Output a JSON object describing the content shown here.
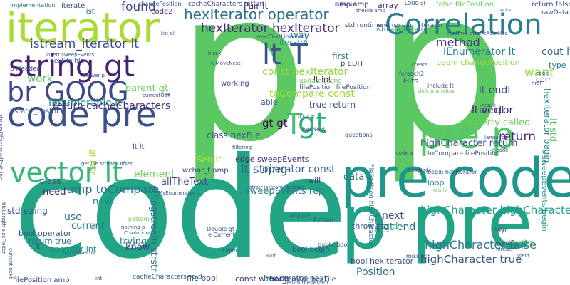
{
  "words": [
    {
      "text": "p",
      "color": "#5cc863"
    },
    {
      "text": "p",
      "color": "#5cc863"
    },
    {
      "text": "code",
      "color": "#21a585"
    },
    {
      "text": "pre code",
      "color": "#1f968b"
    },
    {
      "text": "p pre",
      "color": "#20a486"
    },
    {
      "text": "iterator",
      "color": "#a8db34"
    },
    {
      "text": "code pre",
      "color": "#3b518b"
    },
    {
      "text": "Correlation",
      "color": "#287d8e"
    },
    {
      "text": "string gt",
      "color": "#482173"
    },
    {
      "text": "br GOOG",
      "color": "#3e4a89"
    },
    {
      "text": "vector lt",
      "color": "#35b779"
    },
    {
      "text": "lt T",
      "color": "#3b528b"
    },
    {
      "text": "pre p",
      "color": "#56c667"
    },
    {
      "text": "gt",
      "color": "#2db27d"
    },
    {
      "text": "T",
      "color": "#44bf70"
    },
    {
      "text": "hexIterator operator",
      "color": "#2c728e"
    },
    {
      "text": "hexIterator hexIterator",
      "color": "#472c7a"
    },
    {
      "text": "istream_iterator lt",
      "color": "#3e4a89"
    },
    {
      "text": "highCharacter highCharacter",
      "color": "#1fa088"
    },
    {
      "text": "highCharacter false",
      "color": "#2a788e"
    },
    {
      "text": "highCharacter true",
      "color": "#3b528b"
    },
    {
      "text": "lt string",
      "color": "#31688e"
    },
    {
      "text": "IEnumerator lt",
      "color": "#25848e"
    },
    {
      "text": "lt vector",
      "color": "#481a6c"
    },
    {
      "text": "return",
      "color": "#482475"
    },
    {
      "text": "want",
      "color": "#8fd744"
    },
    {
      "text": "found",
      "color": "#3e4989"
    },
    {
      "text": "iterator",
      "color": "#20928c"
    },
    {
      "text": "method",
      "color": "#443983"
    },
    {
      "text": "const hexIterator",
      "color": "#93d741"
    },
    {
      "text": "toCompare const",
      "color": "#a0da39"
    },
    {
      "text": "amp toCompare",
      "color": "#2d708e"
    },
    {
      "text": "operator const",
      "color": "#32648e"
    },
    {
      "text": "sweepEvents rep",
      "color": "#26828e"
    },
    {
      "text": "allTheText",
      "color": "#3f4788"
    },
    {
      "text": "IEnumerable lt",
      "color": "#21918c"
    },
    {
      "text": "return cacheCharacters",
      "color": "#46337e"
    },
    {
      "text": "gt end",
      "color": "#2e6f8e"
    },
    {
      "text": "Position",
      "color": "#2c738e"
    },
    {
      "text": "cout lt",
      "color": "#355e8d"
    },
    {
      "text": "int gt",
      "color": "#3f4889"
    },
    {
      "text": "lt endl",
      "color": "#3b528b"
    },
    {
      "text": "gt gt",
      "color": "#440154"
    },
    {
      "text": "work",
      "color": "#5cc863"
    },
    {
      "text": "element",
      "color": "#6ccd5a"
    },
    {
      "text": "property called",
      "color": "#6ece58"
    },
    {
      "text": "stringstream strstr",
      "color": "#2e6e8e"
    },
    {
      "text": "hexIterator begin",
      "color": "#25838e"
    },
    {
      "text": "std string",
      "color": "#3c4f8a"
    },
    {
      "text": "bool operator",
      "color": "#39558c"
    },
    {
      "text": "Seq lt",
      "color": "#b5de2b"
    },
    {
      "text": "corr",
      "color": "#404688"
    },
    {
      "text": "lt std",
      "color": "#5ec962"
    },
    {
      "text": "need",
      "color": "#482878"
    },
    {
      "text": "use",
      "color": "#2f6c8e"
    },
    {
      "text": "current",
      "color": "#2a788e"
    },
    {
      "text": "trying",
      "color": "#26828e"
    },
    {
      "text": "know",
      "color": "#46337f"
    },
    {
      "text": "next",
      "color": "#3a548c"
    },
    {
      "text": "new",
      "color": "#25858e"
    },
    {
      "text": "class",
      "color": "#3b528b"
    },
    {
      "text": "data",
      "color": "#2a788e"
    },
    {
      "text": "loop",
      "color": "#25848e"
    },
    {
      "text": "end",
      "color": "#35b779"
    },
    {
      "text": "way",
      "color": "#277f8e"
    },
    {
      "text": "first",
      "color": "#2a788e"
    },
    {
      "text": "Hits",
      "color": "#3e4a89"
    },
    {
      "text": "able",
      "color": "#3b528b"
    },
    {
      "text": "will",
      "color": "#46337e"
    },
    {
      "text": "list",
      "color": "#2c728e"
    },
    {
      "text": "code2",
      "color": "#481f70"
    },
    {
      "text": "type",
      "color": "#2a788e"
    },
    {
      "text": "x",
      "color": "#3b528b"
    },
    {
      "text": "bool hexIterator",
      "color": "#3b528b"
    },
    {
      "text": "sweepEvents begin",
      "color": "#20938c"
    },
    {
      "text": "highCharacter return",
      "color": "#39558c"
    },
    {
      "text": "begin changePosition",
      "color": "#89d548"
    },
    {
      "text": "wchar_t amp",
      "color": "#433d84"
    },
    {
      "text": "const wchar_t",
      "color": "#472c7a"
    },
    {
      "text": "file bool",
      "color": "#3b528b"
    },
    {
      "text": "hexIterator next",
      "color": "#2a788e"
    },
    {
      "text": "hexIterator hexFile",
      "color": "#3e4a89"
    },
    {
      "text": "cacheCharacters void",
      "color": "#31688e"
    },
    {
      "text": "filePosition amp",
      "color": "#3e4a89"
    },
    {
      "text": "operator int",
      "color": "#25848e"
    },
    {
      "text": "return true",
      "color": "#2a788e"
    },
    {
      "text": "bool begin",
      "color": "#3b528b"
    },
    {
      "text": "throw std",
      "color": "#3e4a89"
    },
    {
      "text": "parent gt",
      "color": "#6ece58"
    },
    {
      "text": "class hexFile",
      "color": "#3b528b"
    },
    {
      "text": "edge sweepEvents",
      "color": "#482475"
    },
    {
      "text": "true return",
      "color": "#3b528b"
    },
    {
      "text": "lt int",
      "color": "#440154"
    },
    {
      "text": "p EDIT",
      "color": "#3e4a89"
    },
    {
      "text": "static_cast lt",
      "color": "#3b528b"
    },
    {
      "text": "working",
      "color": "#3b528b"
    },
    {
      "text": "gt Pair",
      "color": "#a8db34"
    },
    {
      "text": "Pair lt",
      "color": "#481a6c"
    },
    {
      "text": "array",
      "color": "#482878"
    },
    {
      "text": "lt lt",
      "color": "#3e4a89"
    },
    {
      "text": "amp amp",
      "color": "#482475"
    },
    {
      "text": "cacheCharacters return",
      "color": "#3b528b"
    },
    {
      "text": "changePosition",
      "color": "#3e4a89"
    },
    {
      "text": "iterate",
      "color": "#3b528b"
    },
    {
      "text": "false filePosition",
      "color": "#6ece58"
    },
    {
      "text": "return false",
      "color": "#3b528b"
    },
    {
      "text": "rawData amp",
      "color": "#3e4a89"
    },
    {
      "text": "istream_iterator",
      "color": "#2a788e"
    },
    {
      "text": "std runtime_error",
      "color": "#3b528b"
    },
    {
      "text": "end istream_iterator",
      "color": "#3b528b"
    },
    {
      "text": "p Header",
      "color": "#3e4a89"
    },
    {
      "text": "hexFile file",
      "color": "#3b528b"
    },
    {
      "text": "Implementation",
      "color": "#2a788e"
    },
    {
      "text": "LinkedList",
      "color": "#3e4a89"
    },
    {
      "text": "LONG gt",
      "color": "#3e4a89"
    },
    {
      "text": "filePosition highCharacter",
      "color": "#2a788e"
    },
    {
      "text": "public bool",
      "color": "#3b528b"
    },
    {
      "text": "Double gt",
      "color": "#3e4a89"
    },
    {
      "text": "e Current",
      "color": "#3b528b"
    },
    {
      "text": "Python",
      "color": "#3b528b"
    },
    {
      "text": "missing",
      "color": "#3b528b"
    },
    {
      "text": "foreach2",
      "color": "#3b528b"
    },
    {
      "text": "include lt",
      "color": "#3e4a89"
    },
    {
      "text": "sliding window",
      "color": "#6ece58"
    },
    {
      "text": "language",
      "color": "#3b528b"
    },
    {
      "text": "toCompare filePosition",
      "color": "#3b528b"
    },
    {
      "text": "begin hexIterator",
      "color": "#3b528b"
    },
    {
      "text": "updateCache",
      "color": "#6ece58"
    },
    {
      "text": "readTextLine cout",
      "color": "#3b528b"
    },
    {
      "text": "filePosition filePosition",
      "color": "#3b528b"
    },
    {
      "text": "hasNext",
      "color": "#3e4a89"
    },
    {
      "text": "questions",
      "color": "#3b528b"
    },
    {
      "text": "strstr istream_iterator",
      "color": "#3b528b"
    },
    {
      "text": "MyEnumerator lt",
      "color": "#3b528b"
    },
    {
      "text": "return theIterator",
      "color": "#3b528b"
    },
    {
      "text": "write",
      "color": "#3b528b"
    },
    {
      "text": "edge",
      "color": "#3b528b"
    },
    {
      "text": "result",
      "color": "#3b528b"
    },
    {
      "text": "yield",
      "color": "#3b528b"
    },
    {
      "text": "Ruby",
      "color": "#3b528b"
    },
    {
      "text": "try",
      "color": "#3b528b"
    },
    {
      "text": "block",
      "color": "#3b528b"
    },
    {
      "text": "e MoveNext",
      "color": "#3b528b"
    },
    {
      "text": "n code",
      "color": "#3b528b"
    },
    {
      "text": "filtering",
      "color": "#3b528b"
    },
    {
      "text": "CoolNode",
      "color": "#3b528b"
    },
    {
      "text": "really",
      "color": "#6ece58"
    },
    {
      "text": "pattern",
      "color": "#6ece58"
    },
    {
      "text": "nothing p",
      "color": "#3b528b"
    },
    {
      "text": "C solutions",
      "color": "#3b528b"
    },
    {
      "text": "rep insert",
      "color": "#3b528b"
    },
    {
      "text": "foo.getVector",
      "color": "#3b528b"
    },
    {
      "text": "int",
      "color": "#3b528b"
    },
    {
      "text": "insert sweepEvents",
      "color": "#3b528b"
    },
    {
      "text": "answer p",
      "color": "#3b528b"
    },
    {
      "text": "currentObn",
      "color": "#3b528b"
    },
    {
      "text": "streamOffset readTextLine",
      "color": "#3b528b"
    },
    {
      "text": "fileLength sizeFinder",
      "color": "#3b528b"
    },
    {
      "text": "getline streamOffset",
      "color": "#3b528b"
    },
    {
      "text": "re",
      "color": "#3b528b"
    },
    {
      "text": "list el",
      "color": "#3b528b"
    },
    {
      "text": "code a",
      "color": "#3b528b"
    },
    {
      "text": "d code",
      "color": "#3b528b"
    },
    {
      "text": "href",
      "color": "#3b528b"
    },
    {
      "text": "create",
      "color": "#3b528b"
    },
    {
      "text": "stackoverflow",
      "color": "#6ece58"
    },
    {
      "text": "NewNext",
      "color": "#3b528b"
    },
    {
      "text": "foreach",
      "color": "#3b528b"
    },
    {
      "text": "lt LONG",
      "color": "#3b528b"
    },
    {
      "text": "f item",
      "color": "#3b528b"
    },
    {
      "text": "amp pre",
      "color": "#3b528b"
    },
    {
      "text": "Pair",
      "color": "#3b528b"
    },
    {
      "text": "current next",
      "color": "#3b528b"
    },
    {
      "text": "runtime_error eAsciiMsg",
      "color": "#3b528b"
    },
    {
      "text": "theFile amp",
      "color": "#3b528b"
    }
  ]
}
